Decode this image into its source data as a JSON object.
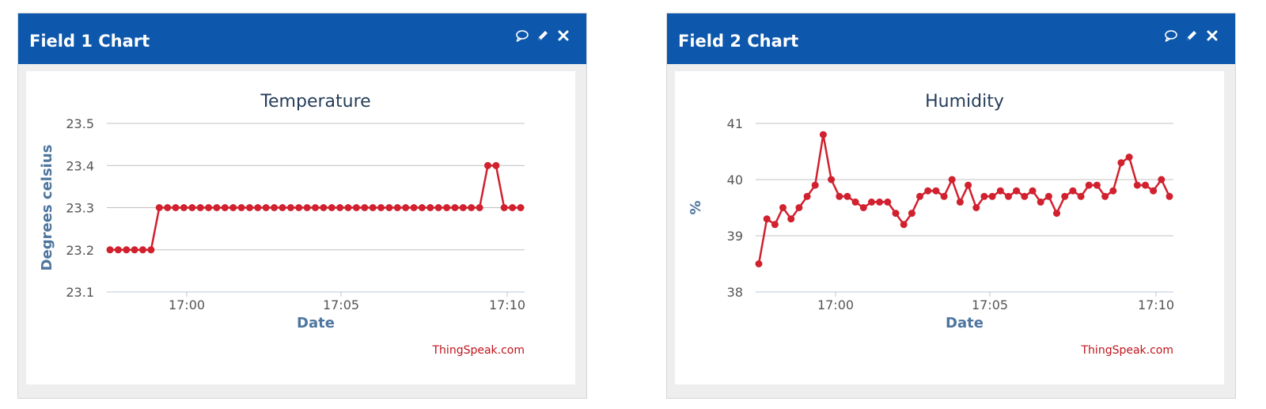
{
  "panels": [
    {
      "title": "Field 1 Chart",
      "icons": [
        "comment-icon",
        "pencil-icon",
        "close-icon"
      ],
      "credit": "ThingSpeak.com",
      "chart_data": {
        "type": "line",
        "title": "Temperature",
        "xlabel": "Date",
        "ylabel": "Degrees celsius",
        "x_tick_labels": [
          "17:00",
          "17:05",
          "17:10"
        ],
        "y_ticks": [
          "23.1",
          "23.2",
          "23.3",
          "23.4",
          "23.5"
        ],
        "ylim": [
          23.1,
          23.5
        ],
        "grid": true,
        "legend": "none",
        "series": [
          {
            "values": [
              23.2,
              23.2,
              23.2,
              23.2,
              23.2,
              23.2,
              23.3,
              23.3,
              23.3,
              23.3,
              23.3,
              23.3,
              23.3,
              23.3,
              23.3,
              23.3,
              23.3,
              23.3,
              23.3,
              23.3,
              23.3,
              23.3,
              23.3,
              23.3,
              23.3,
              23.3,
              23.3,
              23.3,
              23.3,
              23.3,
              23.3,
              23.3,
              23.3,
              23.3,
              23.3,
              23.3,
              23.3,
              23.3,
              23.3,
              23.3,
              23.3,
              23.3,
              23.3,
              23.3,
              23.3,
              23.3,
              23.4,
              23.4,
              23.3,
              23.3,
              23.3
            ]
          }
        ]
      }
    },
    {
      "title": "Field 2 Chart",
      "icons": [
        "comment-icon",
        "pencil-icon",
        "close-icon"
      ],
      "credit": "ThingSpeak.com",
      "chart_data": {
        "type": "line",
        "title": "Humidity",
        "xlabel": "Date",
        "ylabel": "%",
        "x_tick_labels": [
          "17:00",
          "17:05",
          "17:10"
        ],
        "y_ticks": [
          "38",
          "39",
          "40",
          "41"
        ],
        "ylim": [
          38,
          41
        ],
        "grid": true,
        "legend": "none",
        "series": [
          {
            "values": [
              38.5,
              39.3,
              39.2,
              39.5,
              39.3,
              39.5,
              39.7,
              39.9,
              40.8,
              40.0,
              39.7,
              39.7,
              39.6,
              39.5,
              39.6,
              39.6,
              39.6,
              39.4,
              39.2,
              39.4,
              39.7,
              39.8,
              39.8,
              39.7,
              40.0,
              39.6,
              39.9,
              39.5,
              39.7,
              39.7,
              39.8,
              39.7,
              39.8,
              39.7,
              39.8,
              39.6,
              39.7,
              39.4,
              39.7,
              39.8,
              39.7,
              39.9,
              39.9,
              39.7,
              39.8,
              40.3,
              40.4,
              39.9,
              39.9,
              39.8,
              40.0,
              39.7
            ]
          }
        ]
      }
    }
  ],
  "colors": {
    "header": "#0d57ac",
    "series": "#d1202e",
    "title": "#253e5a",
    "axis_label": "#4d759e",
    "tick": "#555555",
    "grid": "#c0c0c0",
    "credit": "#c0131b"
  }
}
